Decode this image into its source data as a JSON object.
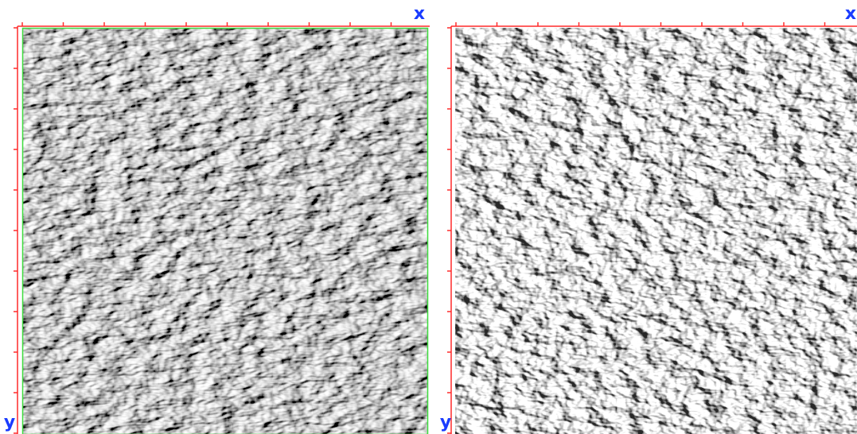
{
  "panels": [
    {
      "x_label": "x",
      "y_label": "y"
    },
    {
      "x_label": "x",
      "y_label": "y"
    }
  ]
}
